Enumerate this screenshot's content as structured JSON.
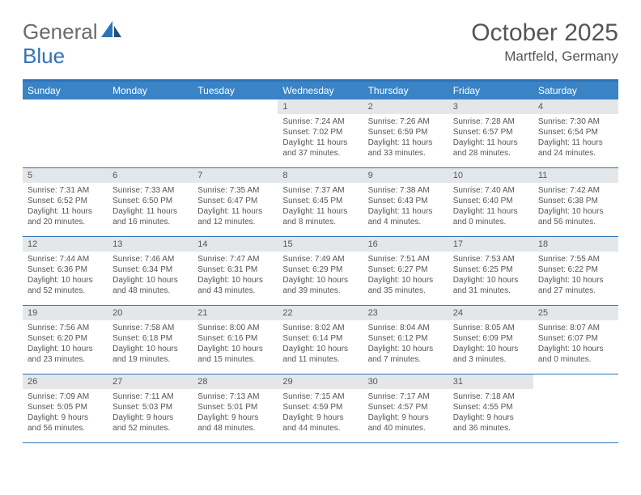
{
  "logo": {
    "text1": "General",
    "text2": "Blue"
  },
  "title": "October 2025",
  "location": "Martfeld, Germany",
  "colors": {
    "brand_blue": "#2e73b8",
    "header_blue": "#3a84c6",
    "day_num_bg": "#e4e7ea",
    "text": "#555555"
  },
  "day_headers": [
    "Sunday",
    "Monday",
    "Tuesday",
    "Wednesday",
    "Thursday",
    "Friday",
    "Saturday"
  ],
  "weeks": [
    [
      {
        "n": "",
        "sr": "",
        "ss": "",
        "dl": ""
      },
      {
        "n": "",
        "sr": "",
        "ss": "",
        "dl": ""
      },
      {
        "n": "",
        "sr": "",
        "ss": "",
        "dl": ""
      },
      {
        "n": "1",
        "sr": "Sunrise: 7:24 AM",
        "ss": "Sunset: 7:02 PM",
        "dl": "Daylight: 11 hours and 37 minutes."
      },
      {
        "n": "2",
        "sr": "Sunrise: 7:26 AM",
        "ss": "Sunset: 6:59 PM",
        "dl": "Daylight: 11 hours and 33 minutes."
      },
      {
        "n": "3",
        "sr": "Sunrise: 7:28 AM",
        "ss": "Sunset: 6:57 PM",
        "dl": "Daylight: 11 hours and 28 minutes."
      },
      {
        "n": "4",
        "sr": "Sunrise: 7:30 AM",
        "ss": "Sunset: 6:54 PM",
        "dl": "Daylight: 11 hours and 24 minutes."
      }
    ],
    [
      {
        "n": "5",
        "sr": "Sunrise: 7:31 AM",
        "ss": "Sunset: 6:52 PM",
        "dl": "Daylight: 11 hours and 20 minutes."
      },
      {
        "n": "6",
        "sr": "Sunrise: 7:33 AM",
        "ss": "Sunset: 6:50 PM",
        "dl": "Daylight: 11 hours and 16 minutes."
      },
      {
        "n": "7",
        "sr": "Sunrise: 7:35 AM",
        "ss": "Sunset: 6:47 PM",
        "dl": "Daylight: 11 hours and 12 minutes."
      },
      {
        "n": "8",
        "sr": "Sunrise: 7:37 AM",
        "ss": "Sunset: 6:45 PM",
        "dl": "Daylight: 11 hours and 8 minutes."
      },
      {
        "n": "9",
        "sr": "Sunrise: 7:38 AM",
        "ss": "Sunset: 6:43 PM",
        "dl": "Daylight: 11 hours and 4 minutes."
      },
      {
        "n": "10",
        "sr": "Sunrise: 7:40 AM",
        "ss": "Sunset: 6:40 PM",
        "dl": "Daylight: 11 hours and 0 minutes."
      },
      {
        "n": "11",
        "sr": "Sunrise: 7:42 AM",
        "ss": "Sunset: 6:38 PM",
        "dl": "Daylight: 10 hours and 56 minutes."
      }
    ],
    [
      {
        "n": "12",
        "sr": "Sunrise: 7:44 AM",
        "ss": "Sunset: 6:36 PM",
        "dl": "Daylight: 10 hours and 52 minutes."
      },
      {
        "n": "13",
        "sr": "Sunrise: 7:46 AM",
        "ss": "Sunset: 6:34 PM",
        "dl": "Daylight: 10 hours and 48 minutes."
      },
      {
        "n": "14",
        "sr": "Sunrise: 7:47 AM",
        "ss": "Sunset: 6:31 PM",
        "dl": "Daylight: 10 hours and 43 minutes."
      },
      {
        "n": "15",
        "sr": "Sunrise: 7:49 AM",
        "ss": "Sunset: 6:29 PM",
        "dl": "Daylight: 10 hours and 39 minutes."
      },
      {
        "n": "16",
        "sr": "Sunrise: 7:51 AM",
        "ss": "Sunset: 6:27 PM",
        "dl": "Daylight: 10 hours and 35 minutes."
      },
      {
        "n": "17",
        "sr": "Sunrise: 7:53 AM",
        "ss": "Sunset: 6:25 PM",
        "dl": "Daylight: 10 hours and 31 minutes."
      },
      {
        "n": "18",
        "sr": "Sunrise: 7:55 AM",
        "ss": "Sunset: 6:22 PM",
        "dl": "Daylight: 10 hours and 27 minutes."
      }
    ],
    [
      {
        "n": "19",
        "sr": "Sunrise: 7:56 AM",
        "ss": "Sunset: 6:20 PM",
        "dl": "Daylight: 10 hours and 23 minutes."
      },
      {
        "n": "20",
        "sr": "Sunrise: 7:58 AM",
        "ss": "Sunset: 6:18 PM",
        "dl": "Daylight: 10 hours and 19 minutes."
      },
      {
        "n": "21",
        "sr": "Sunrise: 8:00 AM",
        "ss": "Sunset: 6:16 PM",
        "dl": "Daylight: 10 hours and 15 minutes."
      },
      {
        "n": "22",
        "sr": "Sunrise: 8:02 AM",
        "ss": "Sunset: 6:14 PM",
        "dl": "Daylight: 10 hours and 11 minutes."
      },
      {
        "n": "23",
        "sr": "Sunrise: 8:04 AM",
        "ss": "Sunset: 6:12 PM",
        "dl": "Daylight: 10 hours and 7 minutes."
      },
      {
        "n": "24",
        "sr": "Sunrise: 8:05 AM",
        "ss": "Sunset: 6:09 PM",
        "dl": "Daylight: 10 hours and 3 minutes."
      },
      {
        "n": "25",
        "sr": "Sunrise: 8:07 AM",
        "ss": "Sunset: 6:07 PM",
        "dl": "Daylight: 10 hours and 0 minutes."
      }
    ],
    [
      {
        "n": "26",
        "sr": "Sunrise: 7:09 AM",
        "ss": "Sunset: 5:05 PM",
        "dl": "Daylight: 9 hours and 56 minutes."
      },
      {
        "n": "27",
        "sr": "Sunrise: 7:11 AM",
        "ss": "Sunset: 5:03 PM",
        "dl": "Daylight: 9 hours and 52 minutes."
      },
      {
        "n": "28",
        "sr": "Sunrise: 7:13 AM",
        "ss": "Sunset: 5:01 PM",
        "dl": "Daylight: 9 hours and 48 minutes."
      },
      {
        "n": "29",
        "sr": "Sunrise: 7:15 AM",
        "ss": "Sunset: 4:59 PM",
        "dl": "Daylight: 9 hours and 44 minutes."
      },
      {
        "n": "30",
        "sr": "Sunrise: 7:17 AM",
        "ss": "Sunset: 4:57 PM",
        "dl": "Daylight: 9 hours and 40 minutes."
      },
      {
        "n": "31",
        "sr": "Sunrise: 7:18 AM",
        "ss": "Sunset: 4:55 PM",
        "dl": "Daylight: 9 hours and 36 minutes."
      },
      {
        "n": "",
        "sr": "",
        "ss": "",
        "dl": ""
      }
    ]
  ]
}
